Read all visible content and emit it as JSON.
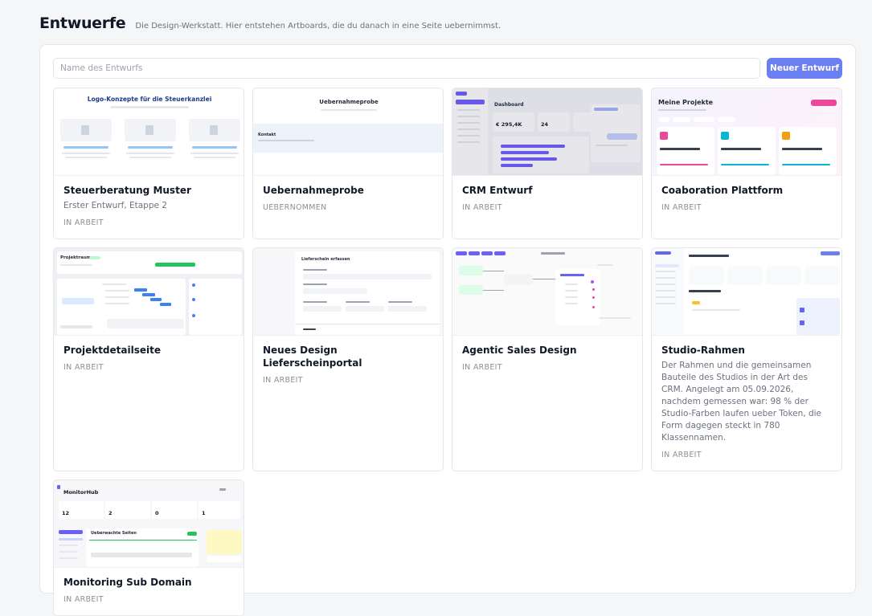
{
  "header": {
    "title": "Entwuerfe",
    "subtitle": "Die Design-Werkstatt. Hier entstehen Artboards, die du danach in eine Seite uebernimmst."
  },
  "search": {
    "placeholder": "Name des Entwurfs"
  },
  "new_button": "Neuer Entwurf",
  "cards": [
    {
      "thumb_texts": [
        "Logo-Konzepte für die Steuerkanzlei"
      ],
      "title": "Steuerberatung Muster",
      "subtitle": "Erster Entwurf, Etappe 2",
      "status": "IN ARBEIT"
    },
    {
      "thumb_texts": [
        "Uebernahmeprobe",
        "Kontakt"
      ],
      "title": "Uebernahmeprobe",
      "status": "UEBERNOMMEN"
    },
    {
      "thumb_texts": [
        "Dashboard",
        "€ 295,4K",
        "24"
      ],
      "title": "CRM Entwurf",
      "status": "IN ARBEIT"
    },
    {
      "thumb_texts": [
        "Meine Projekte"
      ],
      "title": "Coaboration Plattform",
      "status": "IN ARBEIT"
    },
    {
      "thumb_texts": [
        "Projektraum"
      ],
      "title": "Projektdetailseite",
      "status": "IN ARBEIT"
    },
    {
      "thumb_texts": [
        "Lieferschein erfassen"
      ],
      "title": "Neues Design Lieferscheinportal",
      "status": "IN ARBEIT"
    },
    {
      "thumb_texts": [],
      "title": "Agentic Sales Design",
      "status": "IN ARBEIT"
    },
    {
      "thumb_texts": [],
      "title": "Studio-Rahmen",
      "subtitle": "Der Rahmen und die gemeinsamen Bauteile des Studios in der Art des CRM. Angelegt am 05.09.2026, nachdem gemessen war: 98 % der Studio-Farben laufen ueber Token, die Form dagegen steckt in 780 Klassennamen.",
      "status": "IN ARBEIT"
    },
    {
      "thumb_texts": [
        "MonitorHub",
        "Ueberwachte Seiten",
        "12",
        "2",
        "0",
        "1"
      ],
      "title": "Monitoring Sub Domain",
      "status": "IN ARBEIT"
    }
  ]
}
